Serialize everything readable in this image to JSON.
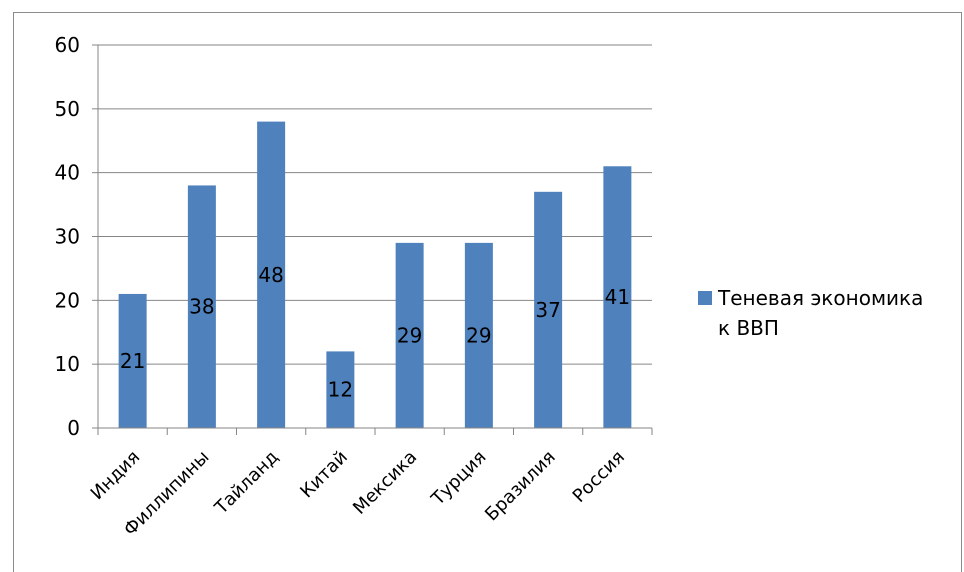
{
  "chart_data": {
    "type": "bar",
    "categories": [
      "Индия",
      "Филлипины",
      "Тайланд",
      "Китай",
      "Мексика",
      "Турция",
      "Бразилия",
      "Россия"
    ],
    "series": [
      {
        "name": "Теневая экономика к ВВП",
        "values": [
          21,
          38,
          48,
          12,
          29,
          29,
          37,
          41
        ],
        "color": "#4f81bd"
      }
    ],
    "ylim": [
      0,
      60
    ],
    "yticks": [
      0,
      10,
      20,
      30,
      40,
      50,
      60
    ],
    "grid": true,
    "legend_position": "right",
    "legend_lines": [
      "Теневая экономика",
      "к ВВП"
    ],
    "data_labels": true
  }
}
